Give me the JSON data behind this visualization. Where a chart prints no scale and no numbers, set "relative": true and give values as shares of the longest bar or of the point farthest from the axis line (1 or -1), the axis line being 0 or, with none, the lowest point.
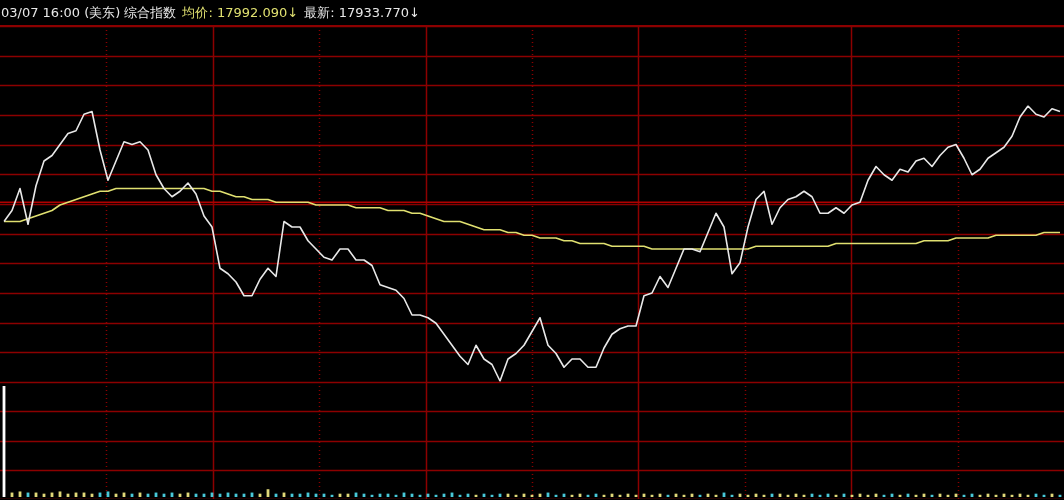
{
  "chart_data": [
    {
      "type": "line",
      "title": "03/07 16:00 (美东) 综合指数",
      "annotations": [
        "均价: 17992.090↓",
        "最新: 17933.770↓"
      ],
      "relative": true,
      "grid": true,
      "legend": false,
      "marker": "none",
      "line_style": "solid",
      "categories": [
        null,
        null,
        null,
        null,
        null,
        null,
        null,
        null,
        null,
        null,
        null,
        null,
        null,
        null,
        null,
        null,
        null,
        null,
        null,
        null,
        null,
        null,
        null,
        null,
        null,
        null,
        null,
        null,
        null,
        null,
        null,
        null,
        null,
        null,
        null,
        null,
        null,
        null,
        null,
        null,
        null,
        null,
        null,
        null,
        null,
        null,
        null,
        null,
        null,
        null,
        null,
        null,
        null,
        null,
        null,
        null,
        null,
        null,
        null,
        null,
        null,
        null,
        null,
        null,
        null,
        null,
        null,
        null,
        null,
        null,
        null,
        null,
        null,
        null,
        null,
        null,
        null,
        null,
        null,
        null,
        null,
        null,
        null,
        null,
        null,
        null,
        null,
        null,
        null,
        null,
        null,
        null,
        null,
        null,
        null,
        null,
        null,
        null,
        null,
        null,
        null,
        null,
        null,
        null,
        null,
        null,
        null,
        null,
        null,
        null,
        null,
        null,
        null,
        null,
        null,
        null,
        null,
        null,
        null,
        null,
        null,
        null,
        null,
        null,
        null,
        null,
        null,
        null,
        null,
        null,
        null,
        null,
        null
      ],
      "ref_lines": [
        {
          "axis": "y",
          "value": 0.65,
          "color": "#b00000"
        }
      ],
      "series": [
        {
          "color": "#e8e8e8",
          "values": [
            0.58,
            0.62,
            0.7,
            0.57,
            0.71,
            0.8,
            0.82,
            0.86,
            0.9,
            0.91,
            0.97,
            0.98,
            0.84,
            0.73,
            0.8,
            0.87,
            0.86,
            0.87,
            0.84,
            0.75,
            0.7,
            0.67,
            0.69,
            0.72,
            0.68,
            0.6,
            0.56,
            0.41,
            0.39,
            0.36,
            0.31,
            0.31,
            0.37,
            0.41,
            0.38,
            0.58,
            0.56,
            0.56,
            0.51,
            0.48,
            0.45,
            0.44,
            0.48,
            0.48,
            0.44,
            0.44,
            0.42,
            0.35,
            0.34,
            0.33,
            0.3,
            0.24,
            0.24,
            0.23,
            0.21,
            0.17,
            0.13,
            0.09,
            0.06,
            0.13,
            0.08,
            0.06,
            0,
            0.08,
            0.1,
            0.13,
            0.18,
            0.23,
            0.13,
            0.1,
            0.05,
            0.08,
            0.08,
            0.05,
            0.05,
            0.12,
            0.17,
            0.19,
            0.2,
            0.2,
            0.31,
            0.32,
            0.38,
            0.34,
            0.41,
            0.48,
            0.48,
            0.47,
            0.54,
            0.61,
            0.56,
            0.39,
            0.43,
            0.56,
            0.66,
            0.69,
            0.57,
            0.63,
            0.66,
            0.67,
            0.69,
            0.67,
            0.61,
            0.61,
            0.63,
            0.61,
            0.64,
            0.65,
            0.73,
            0.78,
            0.75,
            0.73,
            0.77,
            0.76,
            0.8,
            0.81,
            0.78,
            0.82,
            0.85,
            0.86,
            0.81,
            0.75,
            0.77,
            0.81,
            0.83,
            0.85,
            0.89,
            0.96,
            1,
            0.97,
            0.96,
            0.99,
            0.98
          ]
        },
        {
          "color": "#e0e070",
          "values": [
            0.58,
            0.58,
            0.58,
            0.59,
            0.6,
            0.61,
            0.62,
            0.64,
            0.65,
            0.66,
            0.67,
            0.68,
            0.69,
            0.69,
            0.7,
            0.7,
            0.7,
            0.7,
            0.7,
            0.7,
            0.7,
            0.7,
            0.7,
            0.7,
            0.7,
            0.7,
            0.69,
            0.69,
            0.68,
            0.67,
            0.67,
            0.66,
            0.66,
            0.66,
            0.65,
            0.65,
            0.65,
            0.65,
            0.65,
            0.64,
            0.64,
            0.64,
            0.64,
            0.64,
            0.63,
            0.63,
            0.63,
            0.63,
            0.62,
            0.62,
            0.62,
            0.61,
            0.61,
            0.6,
            0.59,
            0.58,
            0.58,
            0.58,
            0.57,
            0.56,
            0.55,
            0.55,
            0.55,
            0.54,
            0.54,
            0.53,
            0.53,
            0.52,
            0.52,
            0.52,
            0.51,
            0.51,
            0.5,
            0.5,
            0.5,
            0.5,
            0.49,
            0.49,
            0.49,
            0.49,
            0.49,
            0.48,
            0.48,
            0.48,
            0.48,
            0.48,
            0.48,
            0.48,
            0.48,
            0.48,
            0.48,
            0.48,
            0.48,
            0.48,
            0.49,
            0.49,
            0.49,
            0.49,
            0.49,
            0.49,
            0.49,
            0.49,
            0.49,
            0.49,
            0.5,
            0.5,
            0.5,
            0.5,
            0.5,
            0.5,
            0.5,
            0.5,
            0.5,
            0.5,
            0.5,
            0.51,
            0.51,
            0.51,
            0.51,
            0.52,
            0.52,
            0.52,
            0.52,
            0.52,
            0.53,
            0.53,
            0.53,
            0.53,
            0.53,
            0.53,
            0.54,
            0.54,
            0.54
          ]
        }
      ]
    },
    {
      "type": "bar",
      "relative": true,
      "grid": true,
      "legend": false,
      "categories": [
        null,
        null,
        null,
        null,
        null,
        null,
        null,
        null,
        null,
        null,
        null,
        null,
        null,
        null,
        null,
        null,
        null,
        null,
        null,
        null,
        null,
        null,
        null,
        null,
        null,
        null,
        null,
        null,
        null,
        null,
        null,
        null,
        null,
        null,
        null,
        null,
        null,
        null,
        null,
        null,
        null,
        null,
        null,
        null,
        null,
        null,
        null,
        null,
        null,
        null,
        null,
        null,
        null,
        null,
        null,
        null,
        null,
        null,
        null,
        null,
        null,
        null,
        null,
        null,
        null,
        null,
        null,
        null,
        null,
        null,
        null,
        null,
        null,
        null,
        null,
        null,
        null,
        null,
        null,
        null,
        null,
        null,
        null,
        null,
        null,
        null,
        null,
        null,
        null,
        null,
        null,
        null,
        null,
        null,
        null,
        null,
        null,
        null,
        null,
        null,
        null,
        null,
        null,
        null,
        null,
        null,
        null,
        null,
        null,
        null,
        null,
        null,
        null,
        null,
        null,
        null,
        null,
        null,
        null,
        null,
        null,
        null,
        null,
        null,
        null,
        null,
        null,
        null,
        null,
        null,
        null,
        null,
        null
      ],
      "values": [
        1,
        0.04,
        0.05,
        0.04,
        0.04,
        0.03,
        0.04,
        0.05,
        0.03,
        0.04,
        0.04,
        0.03,
        0.04,
        0.05,
        0.03,
        0.04,
        0.03,
        0.04,
        0.03,
        0.04,
        0.03,
        0.04,
        0.03,
        0.04,
        0.03,
        0.03,
        0.04,
        0.03,
        0.04,
        0.03,
        0.03,
        0.04,
        0.03,
        0.07,
        0.03,
        0.04,
        0.03,
        0.03,
        0.04,
        0.03,
        0.03,
        0.02,
        0.03,
        0.03,
        0.04,
        0.03,
        0.02,
        0.03,
        0.03,
        0.02,
        0.04,
        0.03,
        0.02,
        0.03,
        0.02,
        0.03,
        0.04,
        0.02,
        0.03,
        0.02,
        0.03,
        0.02,
        0.03,
        0.03,
        0.02,
        0.03,
        0.02,
        0.03,
        0.04,
        0.02,
        0.03,
        0.02,
        0.03,
        0.02,
        0.03,
        0.02,
        0.03,
        0.02,
        0.03,
        0.02,
        0.03,
        0.02,
        0.03,
        0.02,
        0.03,
        0.02,
        0.03,
        0.02,
        0.03,
        0.02,
        0.04,
        0.02,
        0.03,
        0.02,
        0.03,
        0.02,
        0.03,
        0.03,
        0.02,
        0.03,
        0.02,
        0.03,
        0.02,
        0.03,
        0.02,
        0.03,
        0.02,
        0.03,
        0.02,
        0.03,
        0.02,
        0.03,
        0.02,
        0.03,
        0.02,
        0.03,
        0.02,
        0.03,
        0.02,
        0.03,
        0.02,
        0.03,
        0.02,
        0.03,
        0.02,
        0.03,
        0.02,
        0.03,
        0.02,
        0.03,
        0.02,
        0.03,
        0.02
      ],
      "colors": [
        "#ffffff",
        "#e0d878",
        "#e0d878",
        "#48c8d8",
        "#e0d878",
        "#e0d878",
        "#e0d878",
        "#e0d878",
        "#e0d878",
        "#e0d878",
        "#e0d878",
        "#e0d878",
        "#48c8d8",
        "#48c8d8",
        "#e0d878",
        "#e0d878",
        "#48c8d8",
        "#e0d878",
        "#48c8d8",
        "#48c8d8",
        "#48c8d8",
        "#48c8d8",
        "#e0d878",
        "#e0d878",
        "#48c8d8",
        "#48c8d8",
        "#48c8d8",
        "#48c8d8",
        "#48c8d8",
        "#48c8d8",
        "#48c8d8",
        "#48c8d8",
        "#e0d878",
        "#e0d878",
        "#48c8d8",
        "#e0d878",
        "#48c8d8",
        "#48c8d8",
        "#48c8d8",
        "#48c8d8",
        "#48c8d8",
        "#48c8d8",
        "#e0d878",
        "#e0d878",
        "#48c8d8",
        "#48c8d8",
        "#48c8d8",
        "#48c8d8",
        "#48c8d8",
        "#48c8d8",
        "#48c8d8",
        "#48c8d8",
        "#48c8d8",
        "#48c8d8",
        "#48c8d8",
        "#48c8d8",
        "#48c8d8",
        "#48c8d8",
        "#48c8d8",
        "#e0d878",
        "#48c8d8",
        "#48c8d8",
        "#48c8d8",
        "#e0d878",
        "#e0d878",
        "#e0d878",
        "#e0d878",
        "#e0d878",
        "#48c8d8",
        "#48c8d8",
        "#48c8d8",
        "#e0d878",
        "#e0d878",
        "#48c8d8",
        "#48c8d8",
        "#e0d878",
        "#e0d878",
        "#e0d878",
        "#e0d878",
        "#e0d878",
        "#e0d878",
        "#e0d878",
        "#e0d878",
        "#48c8d8",
        "#e0d878",
        "#e0d878",
        "#e0d878",
        "#48c8d8",
        "#e0d878",
        "#e0d878",
        "#48c8d8",
        "#48c8d8",
        "#e0d878",
        "#e0d878",
        "#e0d878",
        "#e0d878",
        "#48c8d8",
        "#e0d878",
        "#e0d878",
        "#e0d878",
        "#e0d878",
        "#48c8d8",
        "#48c8d8",
        "#48c8d8",
        "#e0d878",
        "#48c8d8",
        "#e0d878",
        "#e0d878",
        "#e0d878",
        "#e0d878",
        "#48c8d8",
        "#48c8d8",
        "#e0d878",
        "#48c8d8",
        "#e0d878",
        "#e0d878",
        "#48c8d8",
        "#e0d878",
        "#e0d878",
        "#e0d878",
        "#48c8d8",
        "#48c8d8",
        "#e0d878",
        "#e0d878",
        "#e0d878",
        "#e0d878",
        "#e0d878",
        "#e0d878",
        "#e0d878",
        "#48c8d8",
        "#48c8d8",
        "#e0d878",
        "#48c8d8"
      ]
    }
  ]
}
